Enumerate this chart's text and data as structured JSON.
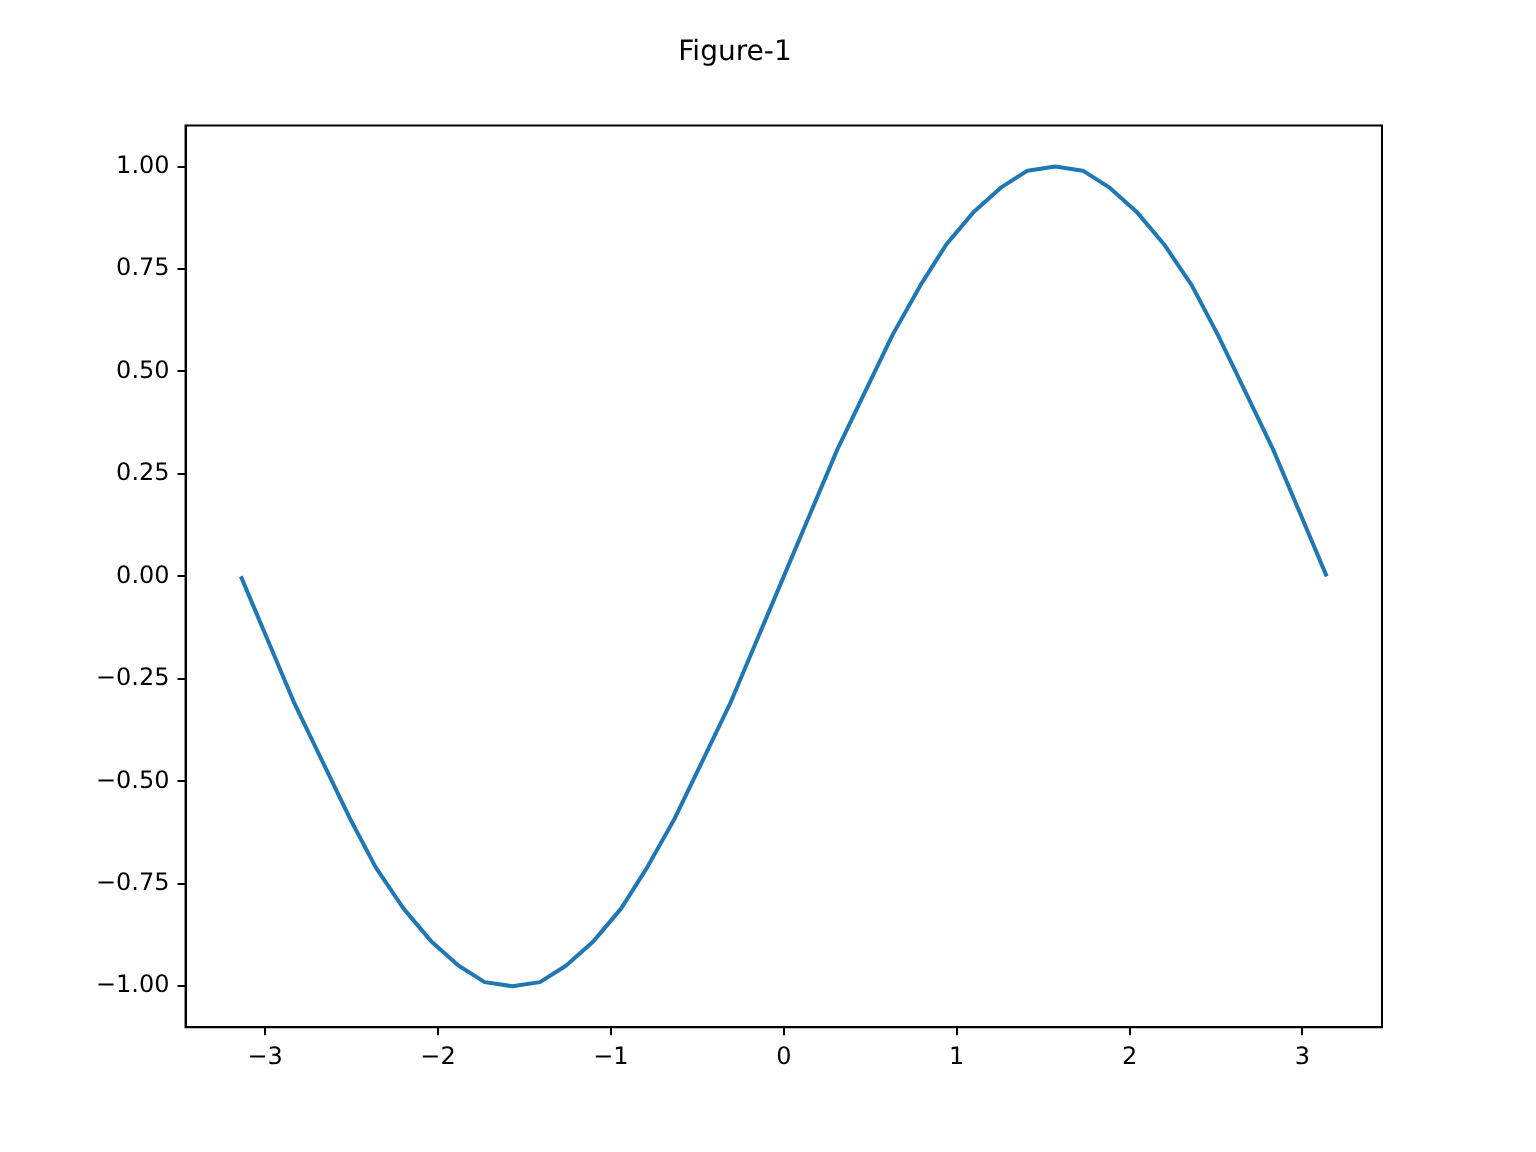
{
  "chart_data": {
    "type": "line",
    "title": "Figure-1",
    "x": [
      -3.14,
      -2.98,
      -2.83,
      -2.67,
      -2.51,
      -2.36,
      -2.2,
      -2.04,
      -1.88,
      -1.73,
      -1.57,
      -1.41,
      -1.26,
      -1.1,
      -0.94,
      -0.79,
      -0.63,
      -0.47,
      -0.31,
      -0.16,
      0,
      0.16,
      0.31,
      0.47,
      0.63,
      0.79,
      0.94,
      1.1,
      1.26,
      1.41,
      1.57,
      1.73,
      1.88,
      2.04,
      2.2,
      2.36,
      2.51,
      2.67,
      2.83,
      2.98,
      3.14
    ],
    "series": [
      {
        "color": "#1f77b4",
        "values": [
          0,
          -0.16,
          -0.31,
          -0.45,
          -0.59,
          -0.71,
          -0.81,
          -0.89,
          -0.95,
          -0.99,
          -1,
          -0.99,
          -0.95,
          -0.89,
          -0.81,
          -0.71,
          -0.59,
          -0.45,
          -0.31,
          -0.16,
          0,
          0.16,
          0.31,
          0.45,
          0.59,
          0.71,
          0.81,
          0.89,
          0.95,
          0.99,
          1,
          0.99,
          0.95,
          0.89,
          0.81,
          0.71,
          0.59,
          0.45,
          0.31,
          0.16,
          0
        ]
      }
    ],
    "xlim": [
      -3.46,
      3.46
    ],
    "xticks": [
      {
        "value": -3,
        "label": "−3"
      },
      {
        "value": -2,
        "label": "−2"
      },
      {
        "value": -1,
        "label": "−1"
      },
      0,
      1,
      2,
      3
    ],
    "ylim": [
      -1.1,
      1.1
    ],
    "yticks": [
      {
        "value": -1,
        "label": "−1.00"
      },
      {
        "value": -0.75,
        "label": "−0.75"
      },
      {
        "value": -0.5,
        "label": "−0.50"
      },
      {
        "value": -0.25,
        "label": "−0.25"
      },
      {
        "value": 0,
        "label": "0.00"
      },
      {
        "value": 0.25,
        "label": "0.25"
      },
      {
        "value": 0.5,
        "label": "0.50"
      },
      {
        "value": 0.75,
        "label": "0.75"
      },
      {
        "value": 1,
        "label": "1.00"
      }
    ],
    "grid": false,
    "legend": false,
    "marker": "none",
    "line_style": "solid"
  }
}
